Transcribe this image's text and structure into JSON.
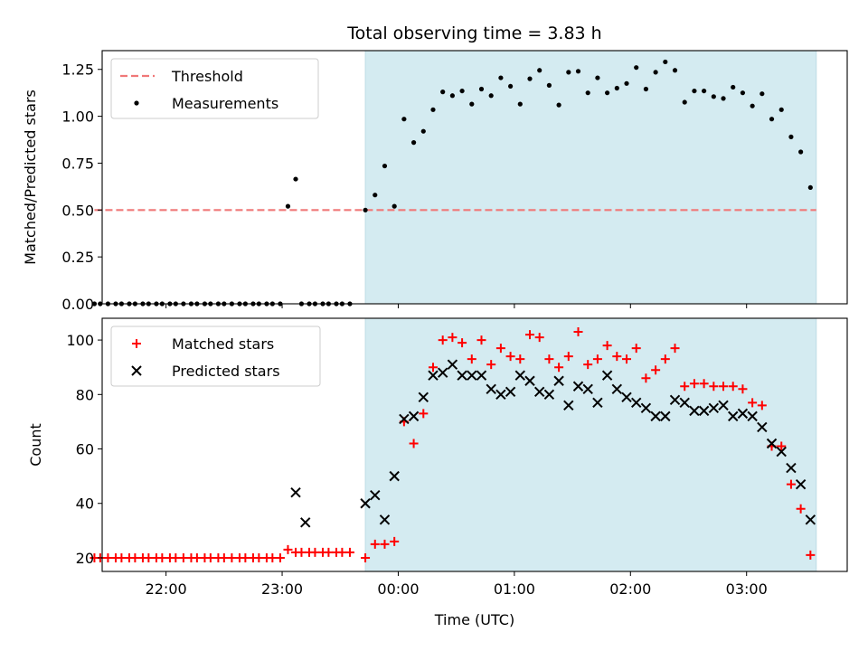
{
  "chart_data": [
    {
      "type": "scatter",
      "title": "Total observing time = 3.83 h",
      "xlabel": "",
      "ylabel": "Matched/Predicted stars",
      "xlim": [
        "21:27",
        "03:52"
      ],
      "ylim": [
        0,
        1.35
      ],
      "x_ticks": [
        "22:00",
        "23:00",
        "00:00",
        "01:00",
        "02:00",
        "03:00"
      ],
      "y_ticks": [
        "0.00",
        "0.25",
        "0.50",
        "0.75",
        "1.00",
        "1.25"
      ],
      "shaded_span": [
        "23:43",
        "03:36"
      ],
      "shaded_color": "#d4ebf1",
      "legend_position": "upper-left",
      "series": [
        {
          "name": "Threshold",
          "style": "dashed-line",
          "color": "#f07878",
          "x": [
            "21:23",
            "03:36"
          ],
          "y": [
            0.5,
            0.5
          ]
        },
        {
          "name": "Measurements",
          "style": "dot",
          "color": "#000000",
          "x": [
            "21:23",
            "21:26",
            "21:30",
            "21:34",
            "21:37",
            "21:41",
            "21:44",
            "21:48",
            "21:51",
            "21:55",
            "21:58",
            "22:02",
            "22:05",
            "22:09",
            "22:13",
            "22:16",
            "22:20",
            "22:23",
            "22:27",
            "22:30",
            "22:34",
            "22:38",
            "22:41",
            "22:45",
            "22:48",
            "22:52",
            "22:55",
            "22:59",
            "23:03",
            "23:07",
            "23:10",
            "23:14",
            "23:17",
            "23:21",
            "23:24",
            "23:28",
            "23:31",
            "23:35",
            "23:43",
            "23:48",
            "23:53",
            "23:58",
            "00:03",
            "00:08",
            "00:13",
            "00:18",
            "00:23",
            "00:28",
            "00:33",
            "00:38",
            "00:43",
            "00:48",
            "00:53",
            "00:58",
            "01:03",
            "01:08",
            "01:13",
            "01:18",
            "01:23",
            "01:28",
            "01:33",
            "01:38",
            "01:43",
            "01:48",
            "01:53",
            "01:58",
            "02:03",
            "02:08",
            "02:13",
            "02:18",
            "02:23",
            "02:28",
            "02:33",
            "02:38",
            "02:43",
            "02:48",
            "02:53",
            "02:58",
            "03:03",
            "03:08",
            "03:13",
            "03:18",
            "03:23",
            "03:28",
            "03:33"
          ],
          "y": [
            0,
            0,
            0,
            0,
            0,
            0,
            0,
            0,
            0,
            0,
            0,
            0,
            0,
            0,
            0,
            0,
            0,
            0,
            0,
            0,
            0,
            0,
            0,
            0,
            0,
            0,
            0,
            0,
            0.52,
            0.665,
            0,
            0,
            0,
            0,
            0,
            0,
            0,
            0,
            0.5,
            0.58,
            0.735,
            0.52,
            0.985,
            0.86,
            0.92,
            1.035,
            1.13,
            1.11,
            1.135,
            1.065,
            1.145,
            1.11,
            1.205,
            1.16,
            1.065,
            1.2,
            1.245,
            1.165,
            1.06,
            1.235,
            1.24,
            1.125,
            1.205,
            1.125,
            1.15,
            1.175,
            1.26,
            1.145,
            1.235,
            1.29,
            1.245,
            1.075,
            1.135,
            1.135,
            1.105,
            1.095,
            1.155,
            1.125,
            1.055,
            1.12,
            0.985,
            1.035,
            0.89,
            0.81,
            0.62
          ]
        }
      ]
    },
    {
      "type": "scatter",
      "title": "",
      "xlabel": "Time (UTC)",
      "ylabel": "Count",
      "xlim": [
        "21:27",
        "03:52"
      ],
      "ylim": [
        15,
        108
      ],
      "x_ticks": [
        "22:00",
        "23:00",
        "00:00",
        "01:00",
        "02:00",
        "03:00"
      ],
      "y_ticks": [
        "20",
        "40",
        "60",
        "80",
        "100"
      ],
      "shaded_span": [
        "23:43",
        "03:36"
      ],
      "shaded_color": "#d4ebf1",
      "legend_position": "upper-left",
      "series": [
        {
          "name": "Matched stars",
          "style": "plus",
          "color": "#ff0000",
          "x": [
            "21:23",
            "21:26",
            "21:30",
            "21:34",
            "21:37",
            "21:41",
            "21:44",
            "21:48",
            "21:51",
            "21:55",
            "21:58",
            "22:02",
            "22:05",
            "22:09",
            "22:13",
            "22:16",
            "22:20",
            "22:23",
            "22:27",
            "22:30",
            "22:34",
            "22:38",
            "22:41",
            "22:45",
            "22:48",
            "22:52",
            "22:55",
            "22:59",
            "23:03",
            "23:07",
            "23:10",
            "23:14",
            "23:17",
            "23:21",
            "23:24",
            "23:28",
            "23:31",
            "23:35",
            "23:43",
            "23:48",
            "23:53",
            "23:58",
            "00:03",
            "00:08",
            "00:13",
            "00:18",
            "00:23",
            "00:28",
            "00:33",
            "00:38",
            "00:43",
            "00:48",
            "00:53",
            "00:58",
            "01:03",
            "01:08",
            "01:13",
            "01:18",
            "01:23",
            "01:28",
            "01:33",
            "01:38",
            "01:43",
            "01:48",
            "01:53",
            "01:58",
            "02:03",
            "02:08",
            "02:13",
            "02:18",
            "02:23",
            "02:28",
            "02:33",
            "02:38",
            "02:43",
            "02:48",
            "02:53",
            "02:58",
            "03:03",
            "03:08",
            "03:13",
            "03:18",
            "03:23",
            "03:28",
            "03:33"
          ],
          "y": [
            20,
            20,
            20,
            20,
            20,
            20,
            20,
            20,
            20,
            20,
            20,
            20,
            20,
            20,
            20,
            20,
            20,
            20,
            20,
            20,
            20,
            20,
            20,
            20,
            20,
            20,
            20,
            20,
            23,
            22,
            22,
            22,
            22,
            22,
            22,
            22,
            22,
            22,
            20,
            25,
            25,
            26,
            70,
            62,
            73,
            90,
            100,
            101,
            99,
            93,
            100,
            91,
            97,
            94,
            93,
            102,
            101,
            93,
            90,
            94,
            103,
            91,
            93,
            98,
            94,
            93,
            97,
            86,
            89,
            93,
            97,
            83,
            84,
            84,
            83,
            83,
            83,
            82,
            77,
            76,
            61,
            61,
            47,
            38,
            21
          ]
        },
        {
          "name": "Predicted stars",
          "style": "cross",
          "color": "#000000",
          "x": [
            "23:07",
            "23:12",
            "23:43",
            "23:48",
            "23:53",
            "23:58",
            "00:03",
            "00:08",
            "00:13",
            "00:18",
            "00:23",
            "00:28",
            "00:33",
            "00:38",
            "00:43",
            "00:48",
            "00:53",
            "00:58",
            "01:03",
            "01:08",
            "01:13",
            "01:18",
            "01:23",
            "01:28",
            "01:33",
            "01:38",
            "01:43",
            "01:48",
            "01:53",
            "01:58",
            "02:03",
            "02:08",
            "02:13",
            "02:18",
            "02:23",
            "02:28",
            "02:33",
            "02:38",
            "02:43",
            "02:48",
            "02:53",
            "02:58",
            "03:03",
            "03:08",
            "03:13",
            "03:18",
            "03:23",
            "03:28",
            "03:33"
          ],
          "y": [
            44,
            33,
            40,
            43,
            34,
            50,
            71,
            72,
            79,
            87,
            88,
            91,
            87,
            87,
            87,
            82,
            80,
            81,
            87,
            85,
            81,
            80,
            85,
            76,
            83,
            82,
            77,
            87,
            82,
            79,
            77,
            75,
            72,
            72,
            78,
            77,
            74,
            74,
            75,
            76,
            72,
            73,
            72,
            68,
            62,
            59,
            53,
            47,
            34
          ]
        }
      ]
    }
  ]
}
